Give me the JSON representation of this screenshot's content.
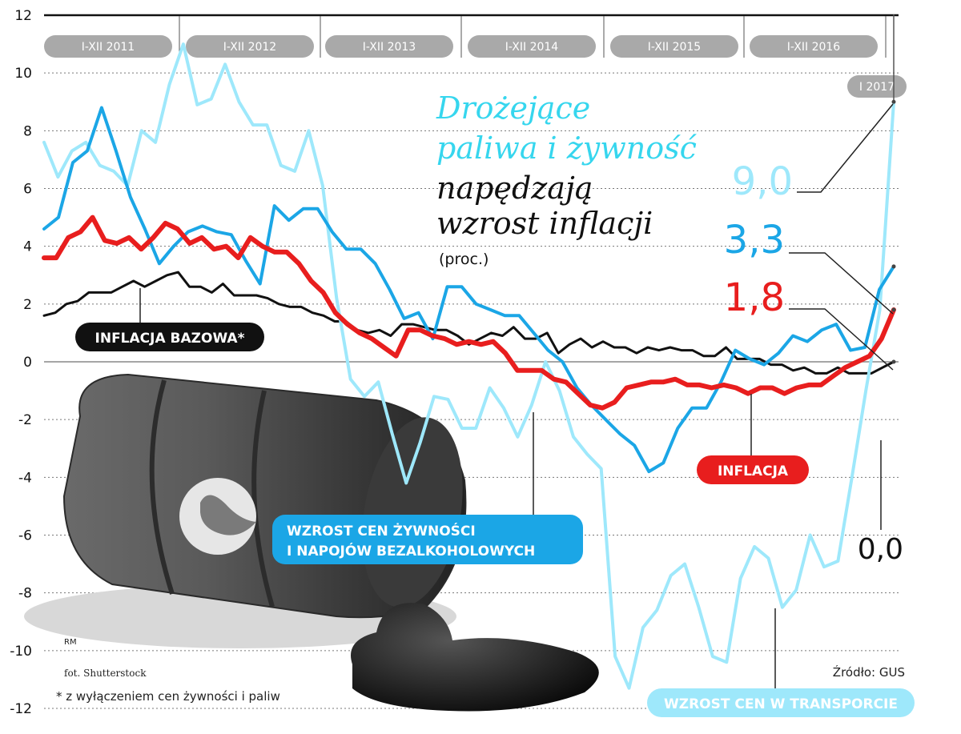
{
  "chart_data": {
    "type": "line",
    "title_line1": "Drożejące",
    "title_line2": "paliwa i żywność",
    "title_line3": "napędzają",
    "title_line4": "wzrost inflacji",
    "unit": "(proc.)",
    "ylim": [
      -12,
      12
    ],
    "yticks": [
      "12",
      "10",
      "8",
      "6",
      "4",
      "2",
      "0",
      "-2",
      "-4",
      "-6",
      "-8",
      "-10",
      "-12"
    ],
    "periods": [
      "I-XII 2011",
      "I-XII 2012",
      "I-XII 2013",
      "I-XII 2014",
      "I-XII 2015",
      "I-XII 2016",
      "I 2017"
    ],
    "grid": true,
    "series": [
      {
        "name": "INFLACJA BAZOWA*",
        "color": "#111111",
        "last_value": "0,0",
        "values": [
          1.6,
          1.7,
          2.0,
          2.1,
          2.4,
          2.4,
          2.4,
          2.6,
          2.8,
          2.6,
          2.8,
          3.0,
          3.1,
          2.6,
          2.6,
          2.4,
          2.7,
          2.3,
          2.3,
          2.3,
          2.2,
          2.0,
          1.9,
          1.9,
          1.7,
          1.6,
          1.4,
          1.4,
          1.1,
          1.0,
          1.1,
          0.9,
          1.3,
          1.3,
          1.2,
          1.1,
          1.1,
          0.9,
          0.6,
          0.8,
          1.0,
          0.9,
          1.2,
          0.8,
          0.8,
          1.0,
          0.3,
          0.6,
          0.8,
          0.5,
          0.7,
          0.5,
          0.5,
          0.3,
          0.5,
          0.4,
          0.5,
          0.4,
          0.4,
          0.2,
          0.2,
          0.5,
          0.1,
          0.1,
          0.1,
          -0.1,
          -0.1,
          -0.3,
          -0.2,
          -0.4,
          -0.4,
          -0.2,
          -0.4,
          -0.4,
          -0.4,
          -0.2,
          0.0
        ]
      },
      {
        "name": "WZROST CEN ŻYWNOŚCI I NAPOJÓW BEZALKOHOLOWYCH",
        "color": "#1ba6e6",
        "last_value": "3,3",
        "values": [
          4.6,
          5.0,
          6.9,
          7.3,
          8.8,
          7.3,
          5.7,
          4.6,
          3.4,
          4.0,
          4.5,
          4.7,
          4.5,
          4.4,
          3.5,
          2.7,
          5.4,
          4.9,
          5.3,
          5.3,
          4.5,
          3.9,
          3.9,
          3.4,
          2.5,
          1.5,
          1.7,
          0.8,
          2.6,
          2.6,
          2.0,
          1.8,
          1.6,
          1.6,
          1.0,
          0.4,
          0.0,
          -0.9,
          -1.5,
          -2.0,
          -2.5,
          -2.9,
          -3.8,
          -3.5,
          -2.3,
          -1.6,
          -1.6,
          -0.7,
          0.4,
          0.1,
          -0.1,
          0.3,
          0.9,
          0.7,
          1.1,
          1.3,
          0.4,
          0.5,
          2.5,
          3.3
        ]
      },
      {
        "name": "INFLACJA",
        "color": "#e81e1e",
        "last_value": "1,8",
        "values": [
          3.6,
          3.6,
          4.3,
          4.5,
          5.0,
          4.2,
          4.1,
          4.3,
          3.9,
          4.3,
          4.8,
          4.6,
          4.1,
          4.3,
          3.9,
          4.0,
          3.6,
          4.3,
          4.0,
          3.8,
          3.8,
          3.4,
          2.8,
          2.4,
          1.7,
          1.3,
          1.0,
          0.8,
          0.5,
          0.2,
          1.1,
          1.1,
          0.9,
          0.8,
          0.6,
          0.7,
          0.6,
          0.7,
          0.3,
          -0.3,
          -0.3,
          -0.3,
          -0.6,
          -0.7,
          -1.1,
          -1.5,
          -1.6,
          -1.4,
          -0.9,
          -0.8,
          -0.7,
          -0.7,
          -0.6,
          -0.8,
          -0.8,
          -0.9,
          -0.8,
          -0.9,
          -1.1,
          -0.9,
          -0.9,
          -1.1,
          -0.9,
          -0.8,
          -0.8,
          -0.5,
          -0.2,
          0.0,
          0.2,
          0.8,
          1.8
        ]
      },
      {
        "name": "WZROST CEN W TRANSPORCIE",
        "color": "#9ee8fb",
        "last_value": "9,0",
        "values": [
          7.6,
          6.4,
          7.3,
          7.6,
          6.8,
          6.6,
          6.1,
          8.0,
          7.6,
          9.6,
          11.0,
          8.9,
          9.1,
          10.3,
          9.0,
          8.2,
          8.2,
          6.8,
          6.6,
          8.0,
          6.1,
          2.2,
          -0.6,
          -1.2,
          -0.7,
          -2.5,
          -4.2,
          -2.8,
          -1.2,
          -1.3,
          -2.3,
          -2.3,
          -0.9,
          -1.6,
          -2.6,
          -1.5,
          0.0,
          -1.0,
          -2.6,
          -3.2,
          -3.7,
          -10.2,
          -11.3,
          -9.2,
          -8.6,
          -7.4,
          -7.0,
          -8.5,
          -10.2,
          -10.4,
          -7.5,
          -6.4,
          -6.8,
          -8.5,
          -7.9,
          -6.0,
          -7.1,
          -6.9,
          -4.0,
          -1.0,
          1.8,
          9.0
        ]
      }
    ],
    "annotations": {
      "footnote": "* z wyłączeniem cen żywności i paliw",
      "source": "Źródło: GUS",
      "author": "RM",
      "photo": "fot. Shutterstock"
    }
  }
}
